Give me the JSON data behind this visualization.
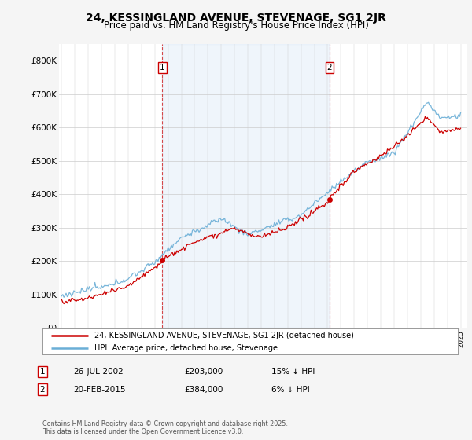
{
  "title": "24, KESSINGLAND AVENUE, STEVENAGE, SG1 2JR",
  "subtitle": "Price paid vs. HM Land Registry's House Price Index (HPI)",
  "ylim": [
    0,
    850000
  ],
  "yticks": [
    0,
    100000,
    200000,
    300000,
    400000,
    500000,
    600000,
    700000,
    800000
  ],
  "ytick_labels": [
    "£0",
    "£100K",
    "£200K",
    "£300K",
    "£400K",
    "£500K",
    "£600K",
    "£700K",
    "£800K"
  ],
  "hpi_color": "#6aaed6",
  "price_color": "#cc0000",
  "vline_color": "#cc0000",
  "shade_color": "#ddeeff",
  "background_color": "#f5f5f5",
  "plot_bg": "#ffffff",
  "marker1_date": 2002.57,
  "marker1_price": 203000,
  "marker1_label": "1",
  "marker2_date": 2015.13,
  "marker2_price": 384000,
  "marker2_label": "2",
  "legend_line1": "24, KESSINGLAND AVENUE, STEVENAGE, SG1 2JR (detached house)",
  "legend_line2": "HPI: Average price, detached house, Stevenage",
  "footer": "Contains HM Land Registry data © Crown copyright and database right 2025.\nThis data is licensed under the Open Government Licence v3.0.",
  "title_fontsize": 10,
  "subtitle_fontsize": 8.5
}
